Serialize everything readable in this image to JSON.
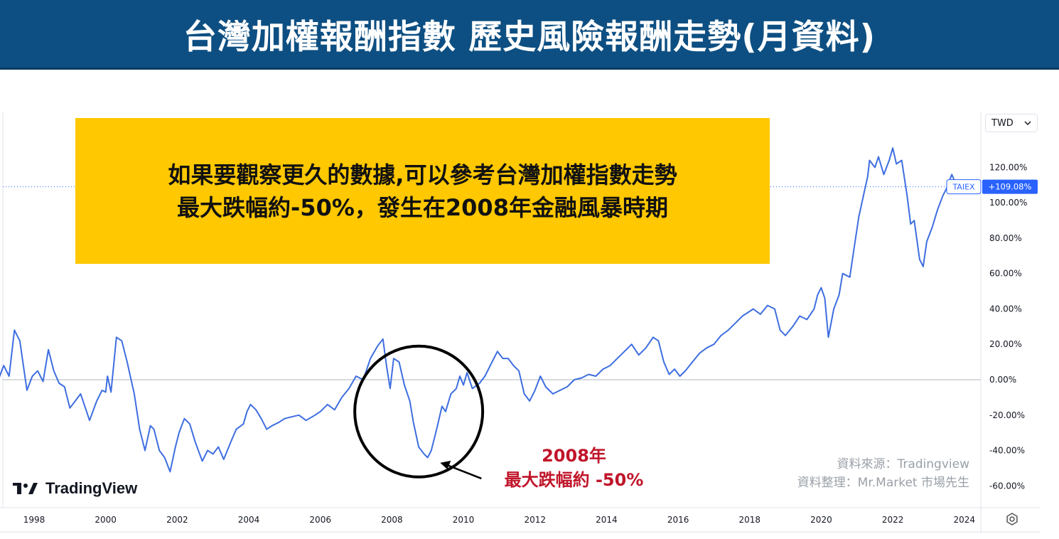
{
  "header": {
    "title": "台灣加權報酬指數  歷史風險報酬走勢(月資料)"
  },
  "note": {
    "line1": "如果要觀察更久的數據,可以參考台灣加權指數走勢",
    "line2": "最大跌幅約-50%，發生在2008年金融風暴時期"
  },
  "toolbar": {
    "currency": "TWD",
    "currency_icon": "chevron-down-icon"
  },
  "branding": {
    "logo_text": "TradingView"
  },
  "source": {
    "line1": "資料來源：Tradingview",
    "line2": "資料整理：Mr.Market 市場先生"
  },
  "annotation": {
    "line1": "2008年",
    "line2": "最大跌幅約 -50%"
  },
  "colors": {
    "title_bg": "#0d4f82",
    "note_bg": "#ffc800",
    "line": "#3e6ee0",
    "annotation": "#c0152a",
    "badge": "#2962ff"
  },
  "chart_data": {
    "type": "line",
    "series": [
      {
        "name": "TAIEX",
        "last_label": "+109.08%",
        "points": [
          [
            1997.0,
            0
          ],
          [
            1997.15,
            8
          ],
          [
            1997.3,
            2
          ],
          [
            1997.45,
            28
          ],
          [
            1997.6,
            22
          ],
          [
            1997.8,
            -6
          ],
          [
            1997.95,
            2
          ],
          [
            1998.1,
            5
          ],
          [
            1998.25,
            -1
          ],
          [
            1998.4,
            17
          ],
          [
            1998.55,
            5
          ],
          [
            1998.7,
            -2
          ],
          [
            1998.85,
            -4
          ],
          [
            1999.0,
            -16
          ],
          [
            1999.15,
            -12
          ],
          [
            1999.3,
            -8
          ],
          [
            1999.45,
            -17
          ],
          [
            1999.55,
            -23
          ],
          [
            1999.75,
            -12
          ],
          [
            1999.9,
            -6
          ],
          [
            2000.0,
            -7
          ],
          [
            2000.05,
            2
          ],
          [
            2000.15,
            -7
          ],
          [
            2000.3,
            24
          ],
          [
            2000.45,
            22
          ],
          [
            2000.6,
            10
          ],
          [
            2000.8,
            -8
          ],
          [
            2000.95,
            -28
          ],
          [
            2001.1,
            -40
          ],
          [
            2001.25,
            -26
          ],
          [
            2001.35,
            -28
          ],
          [
            2001.5,
            -40
          ],
          [
            2001.65,
            -44
          ],
          [
            2001.8,
            -52
          ],
          [
            2001.95,
            -38
          ],
          [
            2002.05,
            -30
          ],
          [
            2002.2,
            -22
          ],
          [
            2002.35,
            -25
          ],
          [
            2002.5,
            -35
          ],
          [
            2002.7,
            -46
          ],
          [
            2002.85,
            -40
          ],
          [
            2003.0,
            -42
          ],
          [
            2003.15,
            -38
          ],
          [
            2003.3,
            -45
          ],
          [
            2003.5,
            -35
          ],
          [
            2003.65,
            -28
          ],
          [
            2003.85,
            -25
          ],
          [
            2003.95,
            -18
          ],
          [
            2004.05,
            -14
          ],
          [
            2004.2,
            -17
          ],
          [
            2004.35,
            -22
          ],
          [
            2004.5,
            -28
          ],
          [
            2004.65,
            -26
          ],
          [
            2004.85,
            -24
          ],
          [
            2005.0,
            -22
          ],
          [
            2005.2,
            -21
          ],
          [
            2005.4,
            -20
          ],
          [
            2005.6,
            -23
          ],
          [
            2005.85,
            -20
          ],
          [
            2006.0,
            -18
          ],
          [
            2006.2,
            -14
          ],
          [
            2006.4,
            -17
          ],
          [
            2006.6,
            -10
          ],
          [
            2006.8,
            -5
          ],
          [
            2007.0,
            2
          ],
          [
            2007.2,
            0
          ],
          [
            2007.4,
            12
          ],
          [
            2007.6,
            19
          ],
          [
            2007.75,
            23
          ],
          [
            2007.85,
            8
          ],
          [
            2007.95,
            -5
          ],
          [
            2008.05,
            12
          ],
          [
            2008.2,
            10
          ],
          [
            2008.35,
            -3
          ],
          [
            2008.5,
            -12
          ],
          [
            2008.6,
            -24
          ],
          [
            2008.75,
            -38
          ],
          [
            2008.9,
            -42
          ],
          [
            2009.0,
            -44
          ],
          [
            2009.1,
            -40
          ],
          [
            2009.25,
            -28
          ],
          [
            2009.4,
            -15
          ],
          [
            2009.5,
            -18
          ],
          [
            2009.65,
            -8
          ],
          [
            2009.8,
            -5
          ],
          [
            2009.9,
            2
          ],
          [
            2010.0,
            -3
          ],
          [
            2010.1,
            4
          ],
          [
            2010.25,
            -5
          ],
          [
            2010.45,
            -2
          ],
          [
            2010.6,
            2
          ],
          [
            2010.8,
            10
          ],
          [
            2010.95,
            16
          ],
          [
            2011.1,
            12
          ],
          [
            2011.25,
            12
          ],
          [
            2011.4,
            8
          ],
          [
            2011.55,
            5
          ],
          [
            2011.7,
            -8
          ],
          [
            2011.85,
            -12
          ],
          [
            2012.0,
            -6
          ],
          [
            2012.15,
            2
          ],
          [
            2012.3,
            -4
          ],
          [
            2012.5,
            -8
          ],
          [
            2012.7,
            -6
          ],
          [
            2012.9,
            -4
          ],
          [
            2013.1,
            0
          ],
          [
            2013.3,
            1
          ],
          [
            2013.5,
            3
          ],
          [
            2013.7,
            2
          ],
          [
            2013.9,
            6
          ],
          [
            2014.1,
            8
          ],
          [
            2014.3,
            12
          ],
          [
            2014.5,
            16
          ],
          [
            2014.7,
            20
          ],
          [
            2014.9,
            14
          ],
          [
            2015.1,
            18
          ],
          [
            2015.3,
            24
          ],
          [
            2015.45,
            22
          ],
          [
            2015.6,
            10
          ],
          [
            2015.75,
            3
          ],
          [
            2015.9,
            6
          ],
          [
            2016.05,
            2
          ],
          [
            2016.2,
            5
          ],
          [
            2016.4,
            10
          ],
          [
            2016.6,
            15
          ],
          [
            2016.8,
            18
          ],
          [
            2017.0,
            20
          ],
          [
            2017.2,
            25
          ],
          [
            2017.4,
            28
          ],
          [
            2017.6,
            32
          ],
          [
            2017.8,
            36
          ],
          [
            2017.95,
            38
          ],
          [
            2018.1,
            40
          ],
          [
            2018.3,
            37
          ],
          [
            2018.5,
            42
          ],
          [
            2018.7,
            40
          ],
          [
            2018.85,
            28
          ],
          [
            2019.0,
            25
          ],
          [
            2019.2,
            30
          ],
          [
            2019.4,
            36
          ],
          [
            2019.6,
            34
          ],
          [
            2019.8,
            40
          ],
          [
            2019.9,
            48
          ],
          [
            2020.0,
            52
          ],
          [
            2020.1,
            46
          ],
          [
            2020.2,
            24
          ],
          [
            2020.35,
            40
          ],
          [
            2020.5,
            48
          ],
          [
            2020.6,
            60
          ],
          [
            2020.8,
            58
          ],
          [
            2020.9,
            72
          ],
          [
            2021.05,
            92
          ],
          [
            2021.2,
            106
          ],
          [
            2021.3,
            115
          ],
          [
            2021.35,
            124
          ],
          [
            2021.5,
            120
          ],
          [
            2021.6,
            126
          ],
          [
            2021.75,
            116
          ],
          [
            2021.9,
            124
          ],
          [
            2022.0,
            131
          ],
          [
            2022.1,
            122
          ],
          [
            2022.25,
            124
          ],
          [
            2022.4,
            104
          ],
          [
            2022.5,
            88
          ],
          [
            2022.6,
            90
          ],
          [
            2022.75,
            68
          ],
          [
            2022.85,
            64
          ],
          [
            2022.95,
            78
          ],
          [
            2023.1,
            86
          ],
          [
            2023.25,
            96
          ],
          [
            2023.4,
            104
          ],
          [
            2023.5,
            108
          ],
          [
            2023.65,
            116
          ],
          [
            2023.8,
            109
          ]
        ]
      }
    ],
    "last_value": 109.08,
    "xlim": [
      1997.0,
      2024.8
    ],
    "ylim": [
      -70,
      150
    ],
    "x_ticks": [
      1998,
      2000,
      2002,
      2004,
      2006,
      2008,
      2010,
      2012,
      2014,
      2016,
      2018,
      2020,
      2022,
      2024
    ],
    "y_ticks": [
      120,
      100,
      80,
      60,
      40,
      20,
      0,
      -20,
      -40,
      -60
    ],
    "y_tick_suffix": "%",
    "grid": false,
    "highlight_circle": {
      "x": 2008.75,
      "y": -18
    },
    "arrow_target": {
      "x": 2009.35,
      "y": -47
    }
  }
}
